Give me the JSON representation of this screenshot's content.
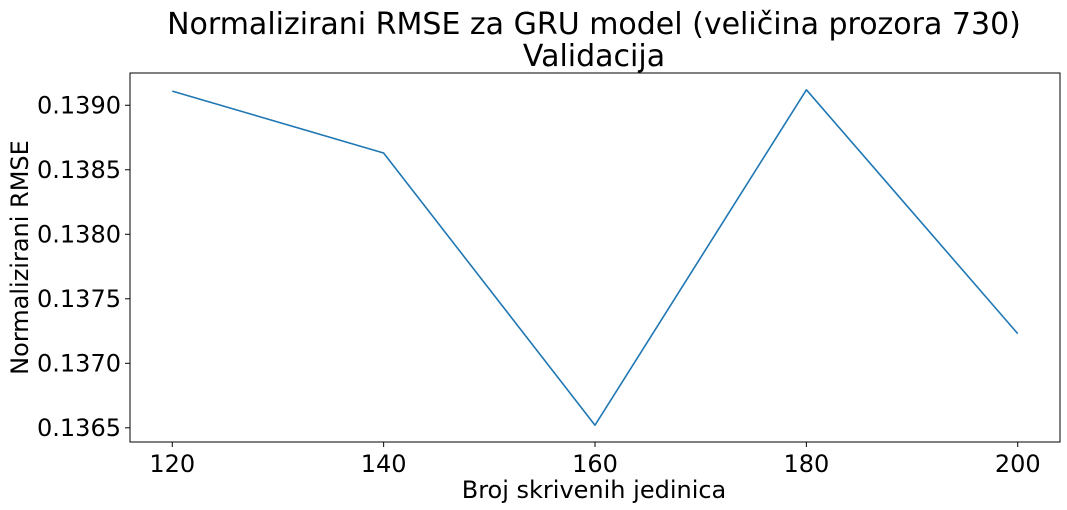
{
  "chart_data": {
    "type": "line",
    "title": "Normalizirani RMSE za GRU model (veličina prozora 730)",
    "subtitle": "Validacija",
    "xlabel": "Broj skrivenih jedinica",
    "ylabel": "Normalizirani RMSE",
    "x": [
      120,
      140,
      160,
      180,
      200
    ],
    "series": [
      {
        "values": [
          0.13911,
          0.13863,
          0.13652,
          0.13912,
          0.13723
        ]
      }
    ],
    "xticks": [
      "120",
      "140",
      "160",
      "180",
      "200"
    ],
    "yticks": [
      "0.1365",
      "0.1370",
      "0.1375",
      "0.1380",
      "0.1385",
      "0.1390"
    ],
    "ytick_values": [
      0.1365,
      0.137,
      0.1375,
      0.138,
      0.1385,
      0.139
    ],
    "xlim": [
      116,
      204
    ],
    "ylim": [
      0.13639,
      0.13925
    ],
    "grid": false,
    "line_color": "#1f77b4"
  }
}
